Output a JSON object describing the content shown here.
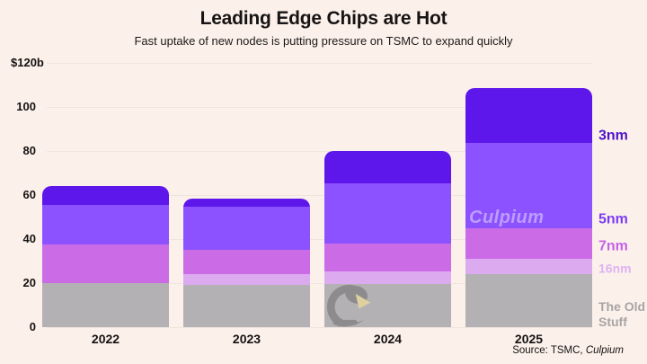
{
  "background_color": "#FCF1EA",
  "header": {
    "title": "Leading Edge Chips are Hot",
    "subtitle": "Fast uptake of new nodes is putting pressure on TSMC to expand quickly"
  },
  "watermark": {
    "text": "Culpium",
    "logo": "lamp-icon"
  },
  "source": {
    "prefix": "Source: TSMC, ",
    "brand": "Culpium"
  },
  "chart_data": {
    "type": "bar",
    "stacked": true,
    "title": "Leading Edge Chips are Hot",
    "subtitle": "Fast uptake of new nodes is putting pressure on TSMC to expand quickly",
    "categories": [
      "2022",
      "2023",
      "2024",
      "2025"
    ],
    "series": [
      {
        "name": "The Old Stuff",
        "color": "#B3B1B3",
        "values": [
          20,
          19,
          19.5,
          24
        ]
      },
      {
        "name": "16nm",
        "color": "#DCAAEE",
        "values": [
          0,
          5,
          6,
          7
        ]
      },
      {
        "name": "7nm",
        "color": "#CB6CE6",
        "values": [
          17.5,
          11,
          12.5,
          14
        ]
      },
      {
        "name": "5nm",
        "color": "#8C52FF",
        "values": [
          18,
          19.5,
          27.5,
          38.5
        ]
      },
      {
        "name": "3nm",
        "color": "#5E17EB",
        "values": [
          8.5,
          4,
          14.5,
          25
        ]
      }
    ],
    "totals": [
      64,
      58.5,
      80,
      108.5
    ],
    "ylim": [
      0,
      120
    ],
    "yticks": [
      0,
      20,
      40,
      60,
      80,
      100,
      120
    ],
    "ytick_labels": [
      "0",
      "20",
      "40",
      "60",
      "80",
      "100",
      "$120b"
    ],
    "grid": true,
    "legend_position": "right-of-last-bar",
    "legend": [
      {
        "text": "3nm",
        "color": "#4E13C8"
      },
      {
        "text": "5nm",
        "color": "#7D3BF6"
      },
      {
        "text": "7nm",
        "color": "#C562E8"
      },
      {
        "text": "16nm",
        "color": "#DDB2F1"
      },
      {
        "text": "The Old Stuff",
        "color": "#A7A4A5"
      }
    ]
  }
}
